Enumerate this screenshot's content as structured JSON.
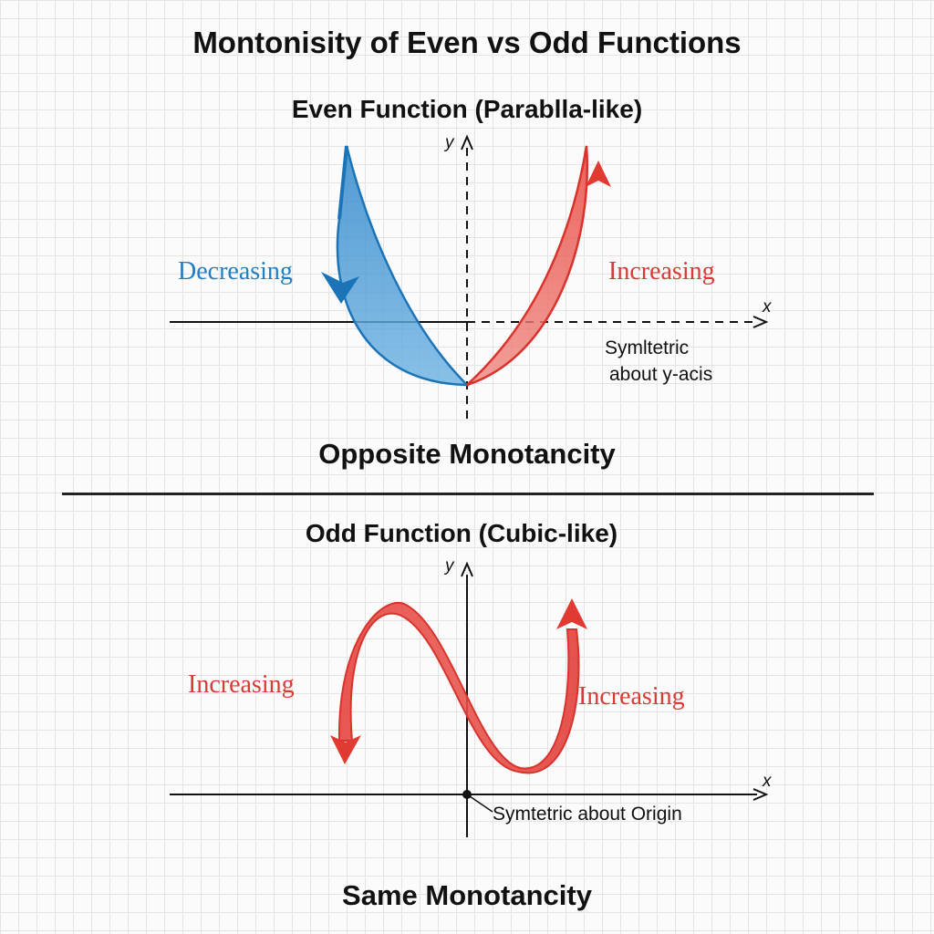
{
  "title": "Montonisity of Even vs Odd Functions",
  "even": {
    "heading": "Even Function (Parablla-like)",
    "left_label": "Decreasing",
    "right_label": "Increasing",
    "symmetry_line1": "Symltetric",
    "symmetry_line2": "about y-acis",
    "axis_x": "x",
    "axis_y": "y",
    "caption": "Opposite Monotancity",
    "colors": {
      "left_curve": "#1f7fc4",
      "right_curve": "#e03a33"
    }
  },
  "odd": {
    "heading": "Odd Function (Cubic-like)",
    "left_label": "Increasing",
    "right_label": "Increasing",
    "symmetry": "Symtetric about Origin",
    "axis_x": "x",
    "axis_y": "y",
    "caption": "Same Monotancity",
    "colors": {
      "curve": "#e03a33"
    }
  }
}
